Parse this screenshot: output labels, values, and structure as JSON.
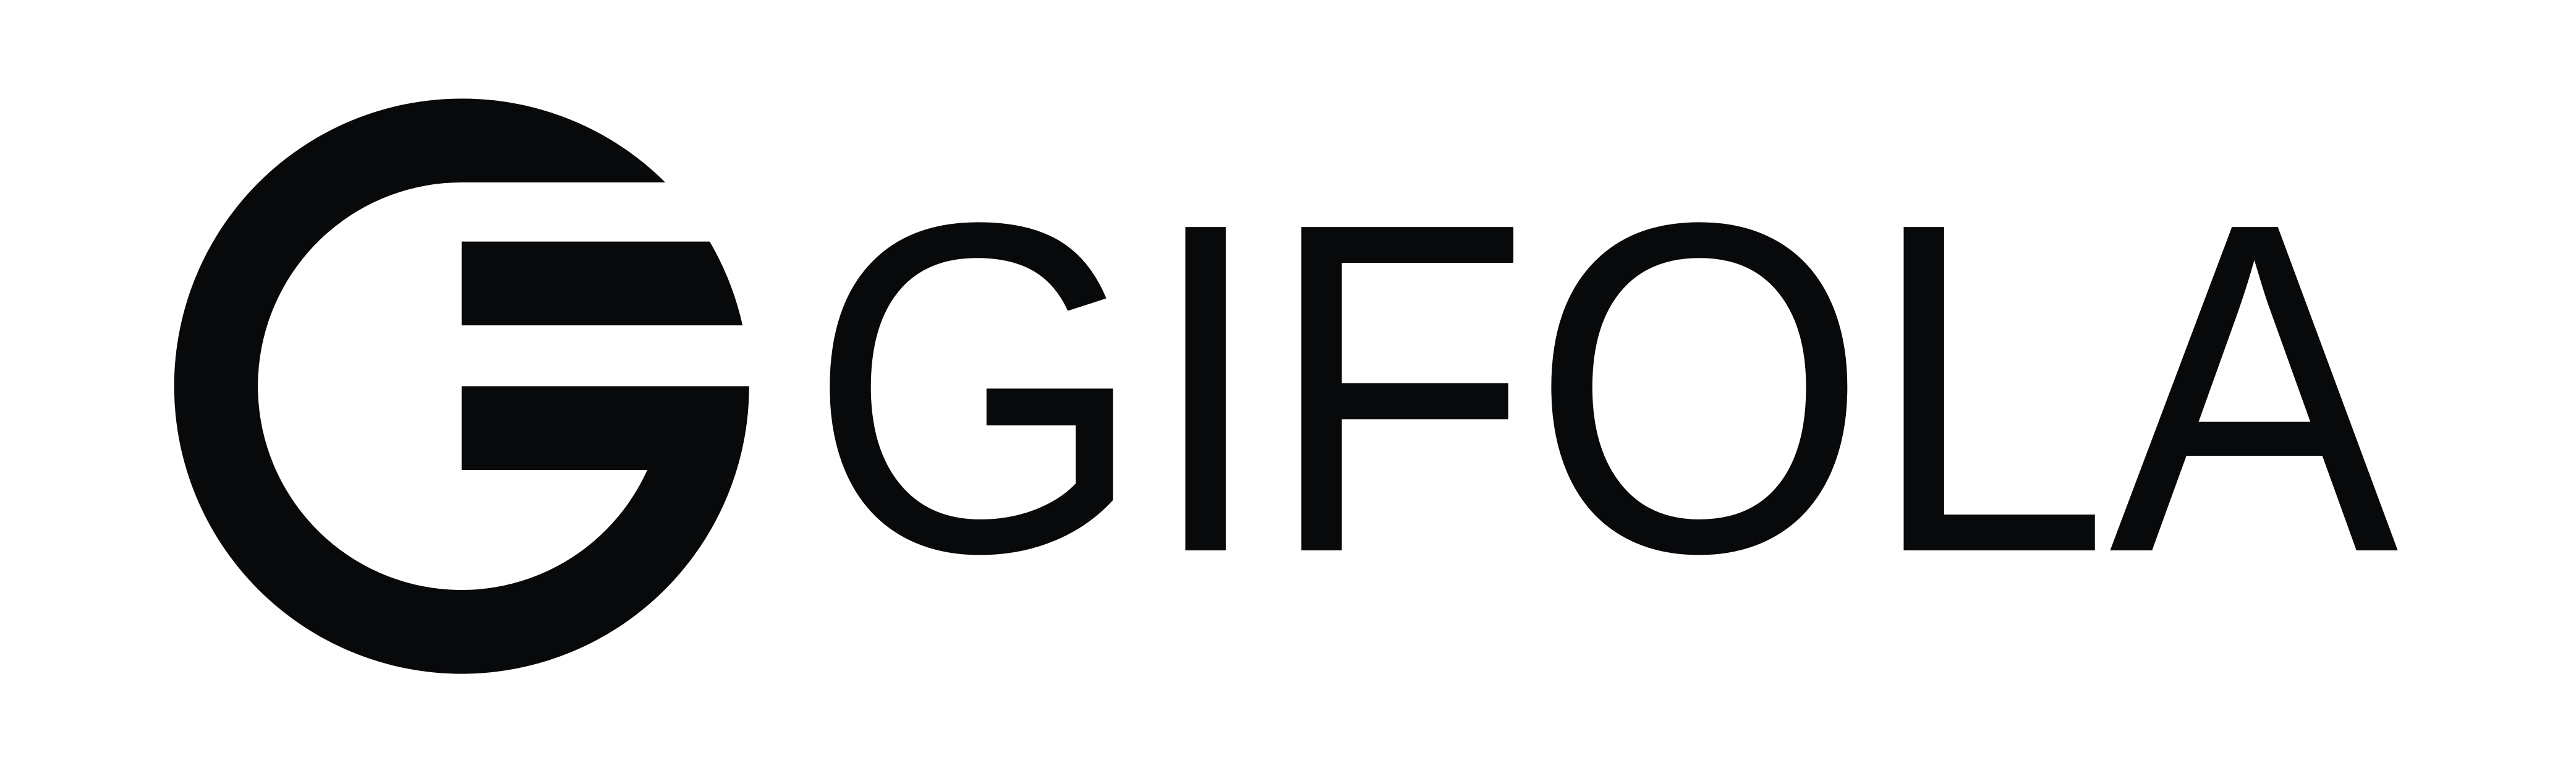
{
  "brand": {
    "name": "GIFOLA"
  }
}
